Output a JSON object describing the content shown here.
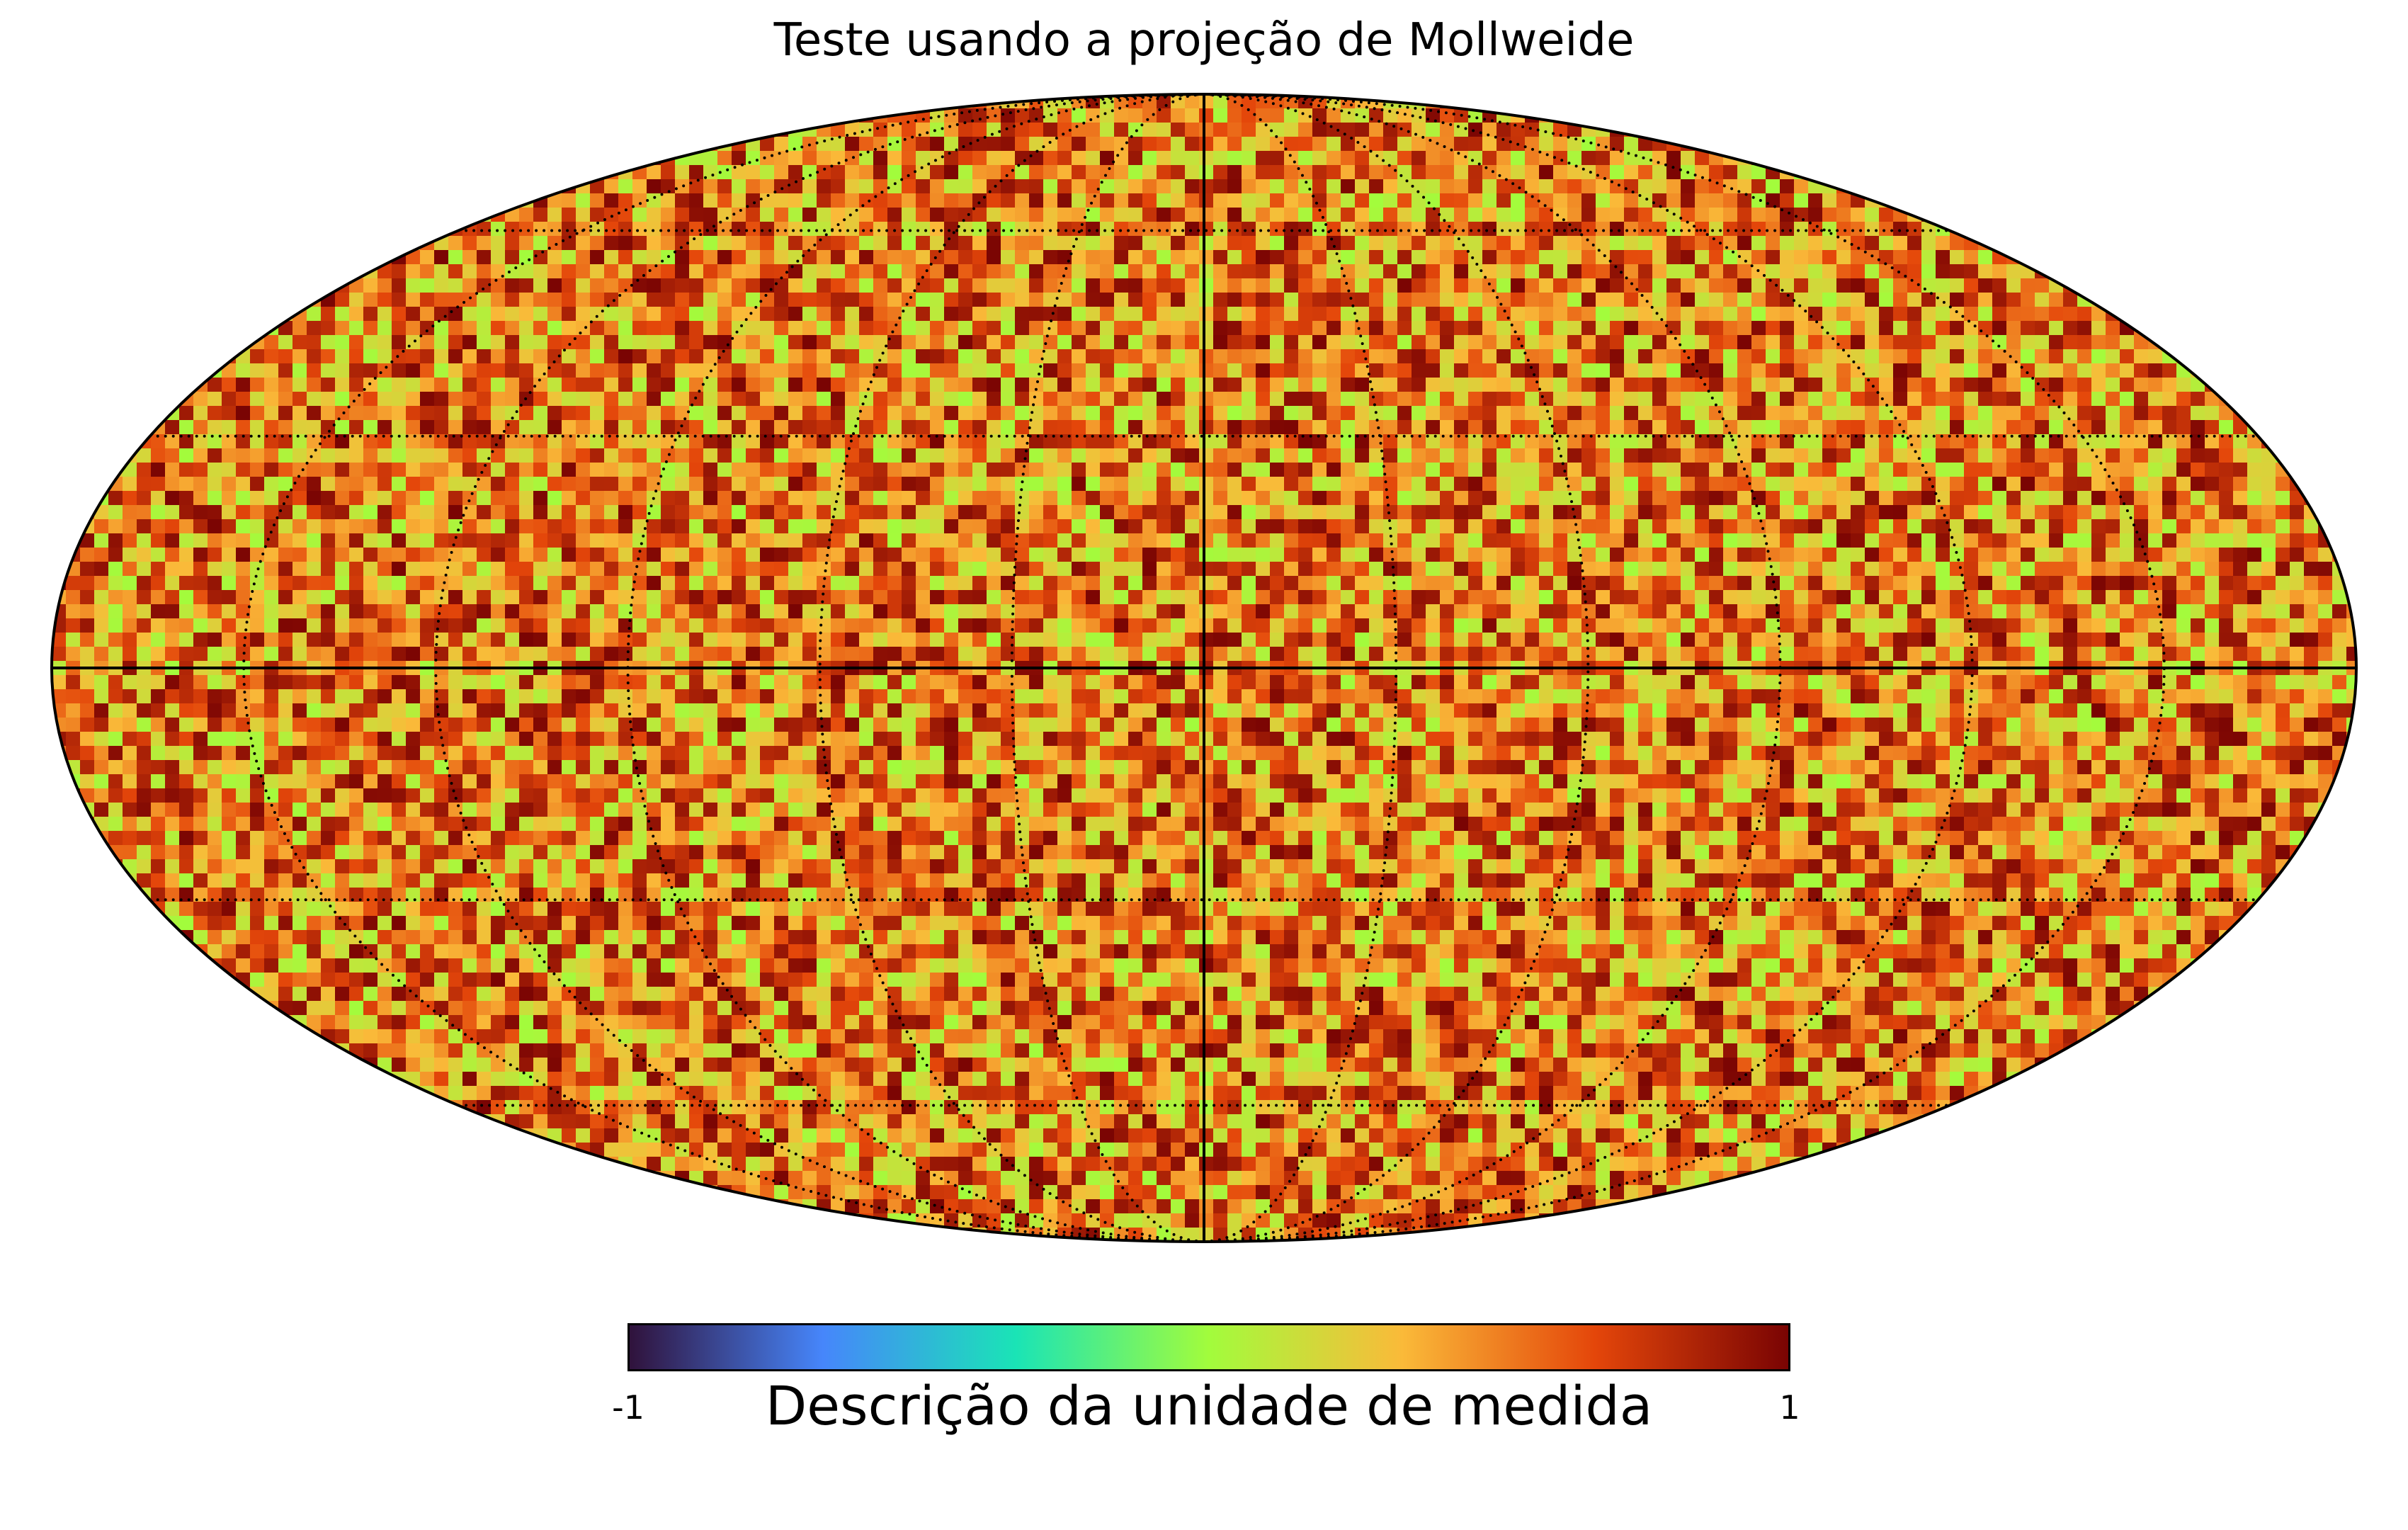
{
  "chart_data": {
    "type": "heatmap",
    "projection": "Mollweide",
    "title": "Teste usando a projeção de Mollweide",
    "colorbar": {
      "label": "Descrição da unidade de medida",
      "min_label": "-1",
      "max_label": "1",
      "vmin": -1,
      "vmax": 1,
      "colormap": "turbo",
      "colormap_stops": [
        "#30123b",
        "#4686fb",
        "#1ae4b6",
        "#a2fc3c",
        "#faba39",
        "#e4460a",
        "#7a0403"
      ]
    },
    "value_distribution": {
      "min": 0,
      "max": 1,
      "note": "random pixel values spanning the upper half of the colour scale"
    },
    "graticule": {
      "style": "dotted",
      "color": "#000000",
      "longitude_step_deg": 30,
      "latitude_step_deg": 30
    },
    "solid_lines": [
      "equator",
      "central meridian"
    ],
    "grid": true
  }
}
